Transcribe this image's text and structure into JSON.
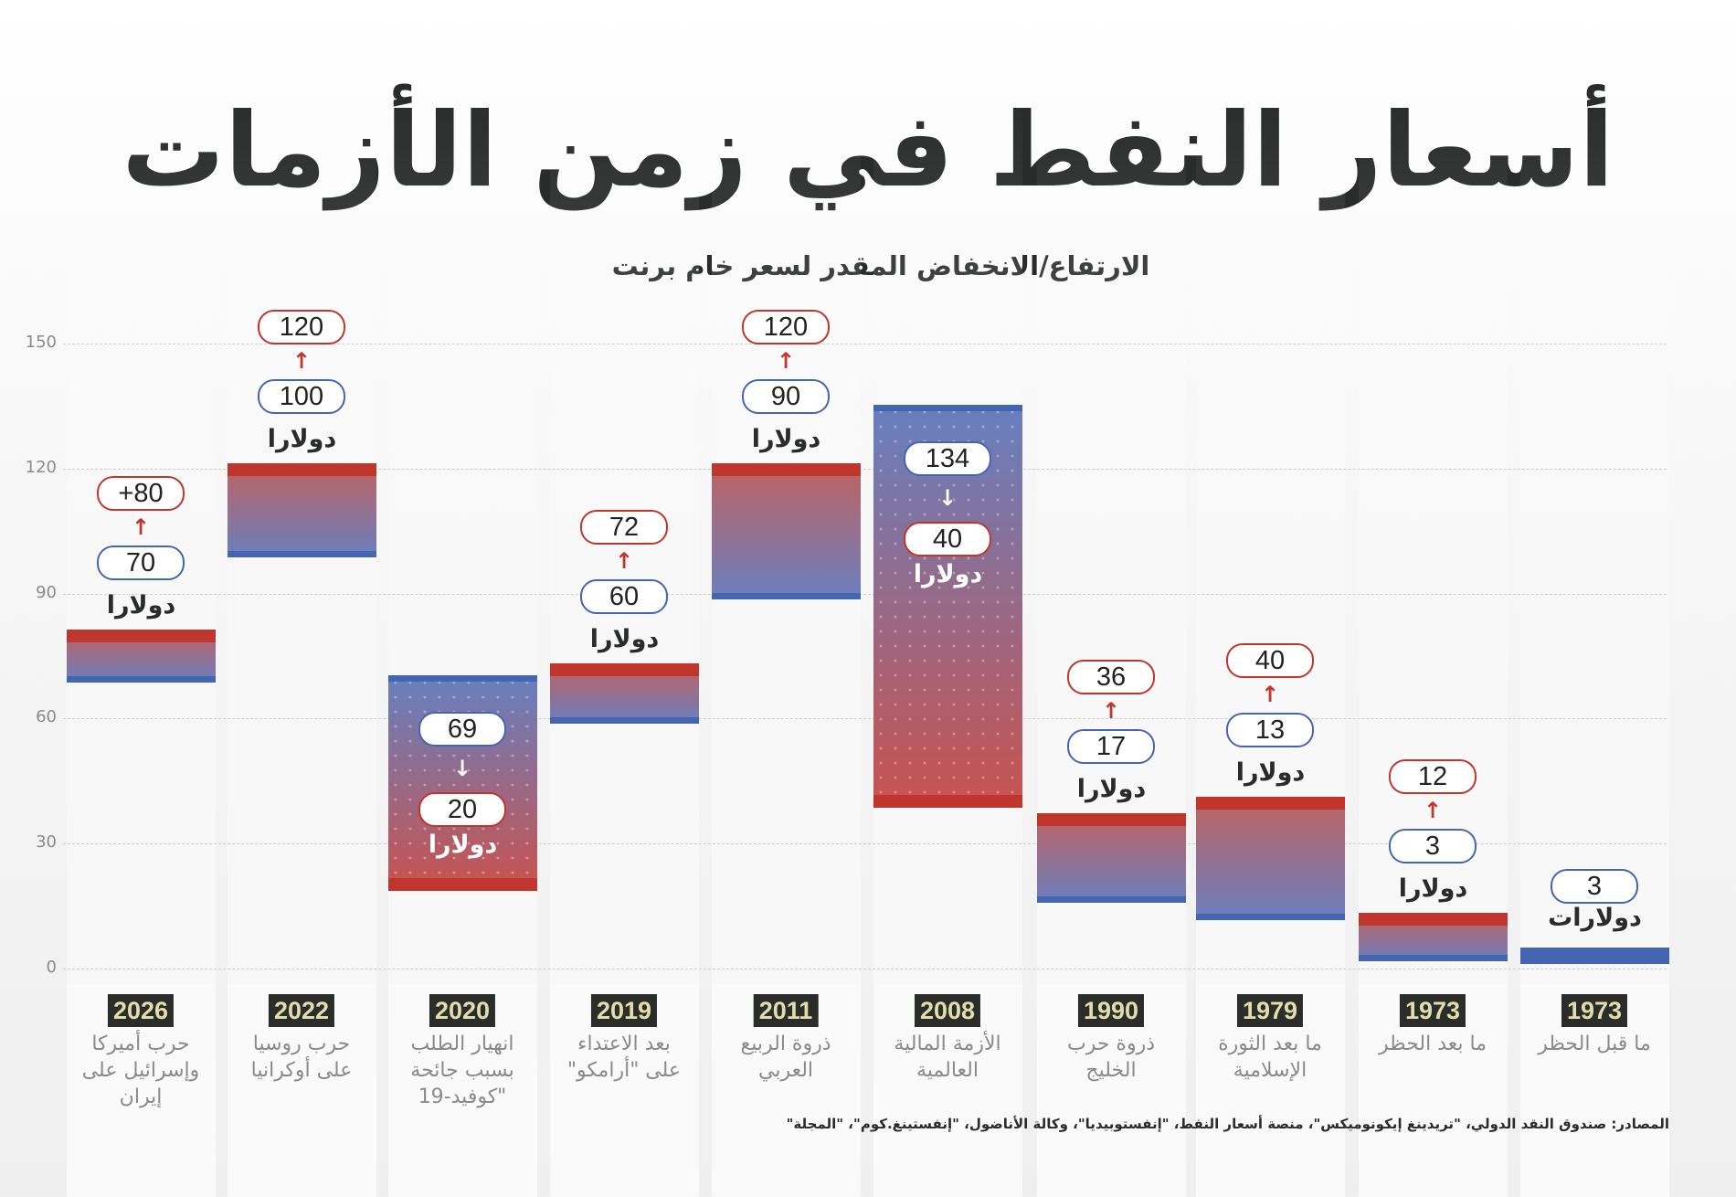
{
  "chart_data": {
    "type": "bar",
    "subtype": "floating-range",
    "title": "أسعار النفط في زمن الأزمات",
    "subtitle": "الارتفاع/الانخفاض المقدر لسعر خام برنت",
    "ylim": [
      0,
      150
    ],
    "yticks": [
      0,
      30,
      60,
      90,
      120,
      150
    ],
    "grid": true,
    "colors": {
      "rise": "#c0362d",
      "fall": "#4466b2",
      "year_bg": "#2b2d2b",
      "year_text": "#e2ddac"
    },
    "categories": [
      {
        "year": "2026",
        "label": [
          "حرب أميركا",
          "وإسرائيل على",
          "إيران"
        ],
        "from": 70,
        "to": 80,
        "from_label": "70",
        "to_label": "+80",
        "unit": "دولارا"
      },
      {
        "year": "2022",
        "label": [
          "حرب روسيا",
          "على أوكرانيا"
        ],
        "from": 100,
        "to": 120,
        "from_label": "100",
        "to_label": "120",
        "unit": "دولارا"
      },
      {
        "year": "2020",
        "label": [
          "انهيار الطلب",
          "بسبب جائحة",
          "\"كوفيد-19"
        ],
        "from": 69,
        "to": 20,
        "from_label": "69",
        "to_label": "20",
        "unit": "دولارا"
      },
      {
        "year": "2019",
        "label": [
          "بعد الاعتداء",
          "على \"أرامكو\""
        ],
        "from": 60,
        "to": 72,
        "from_label": "60",
        "to_label": "72",
        "unit": "دولارا"
      },
      {
        "year": "2011",
        "label": [
          "ذروة الربيع",
          "العربي"
        ],
        "from": 90,
        "to": 120,
        "from_label": "90",
        "to_label": "120",
        "unit": "دولارا"
      },
      {
        "year": "2008",
        "label": [
          "الأزمة المالية",
          "العالمية"
        ],
        "from": 134,
        "to": 40,
        "from_label": "134",
        "to_label": "40",
        "unit": "دولارا"
      },
      {
        "year": "1990",
        "label": [
          "ذروة حرب",
          "الخليج"
        ],
        "from": 17,
        "to": 36,
        "from_label": "17",
        "to_label": "36",
        "unit": "دولارا"
      },
      {
        "year": "1979",
        "label": [
          "ما بعد الثورة",
          "الإسلامية"
        ],
        "from": 13,
        "to": 40,
        "from_label": "13",
        "to_label": "40",
        "unit": "دولارا"
      },
      {
        "year": "1973",
        "label": [
          "ما بعد الحظر"
        ],
        "from": 3,
        "to": 12,
        "from_label": "3",
        "to_label": "12",
        "unit": "دولارا"
      },
      {
        "year": "1973",
        "label": [
          "ما قبل الحظر"
        ],
        "from": 3,
        "to": 3,
        "from_label": "3",
        "to_label": null,
        "unit": "دولارات"
      }
    ],
    "source": "المصادر: صندوق النقد الدولي، \"تريدينغ إيكونوميكس\"، منصة أسعار النفط، \"إنفستوبيديا\"، وكالة الأناضول، \"إنفستينغ.كوم\"، \"المجلة\""
  }
}
